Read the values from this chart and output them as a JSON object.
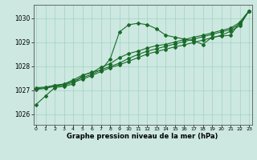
{
  "background_color": "#cce8e0",
  "grid_color": "#99ccbb",
  "line_color": "#1a6b2a",
  "xlabel": "Graphe pression niveau de la mer (hPa)",
  "xlim": [
    -0.3,
    23.3
  ],
  "ylim": [
    1025.55,
    1030.55
  ],
  "yticks": [
    1026,
    1027,
    1028,
    1029,
    1030
  ],
  "xticks": [
    0,
    1,
    2,
    3,
    4,
    5,
    6,
    7,
    8,
    9,
    10,
    11,
    12,
    13,
    14,
    15,
    16,
    17,
    18,
    19,
    20,
    21,
    22,
    23
  ],
  "series": [
    [
      1026.4,
      1026.75,
      1027.1,
      1027.15,
      1027.25,
      1027.6,
      1027.75,
      1027.82,
      1028.3,
      1029.42,
      1029.72,
      1029.78,
      1029.72,
      1029.55,
      1029.28,
      1029.2,
      1029.12,
      1029.05,
      1028.9,
      1029.2,
      1029.25,
      1029.28,
      1029.82,
      1030.3
    ],
    [
      1027.1,
      1027.12,
      1027.2,
      1027.25,
      1027.42,
      1027.62,
      1027.72,
      1027.95,
      1028.1,
      1028.35,
      1028.52,
      1028.62,
      1028.75,
      1028.85,
      1028.9,
      1029.0,
      1029.1,
      1029.2,
      1029.28,
      1029.38,
      1029.48,
      1029.58,
      1029.82,
      1030.3
    ],
    [
      1027.05,
      1027.1,
      1027.18,
      1027.22,
      1027.38,
      1027.52,
      1027.65,
      1027.85,
      1027.98,
      1028.12,
      1028.32,
      1028.48,
      1028.62,
      1028.72,
      1028.82,
      1028.92,
      1029.02,
      1029.12,
      1029.22,
      1029.32,
      1029.42,
      1029.52,
      1029.75,
      1030.3
    ],
    [
      1027.02,
      1027.07,
      1027.15,
      1027.2,
      1027.32,
      1027.45,
      1027.6,
      1027.77,
      1027.93,
      1028.05,
      1028.2,
      1028.35,
      1028.5,
      1028.6,
      1028.7,
      1028.8,
      1028.88,
      1028.98,
      1029.08,
      1029.18,
      1029.28,
      1029.45,
      1029.68,
      1030.3
    ]
  ],
  "figsize": [
    3.2,
    2.0
  ],
  "dpi": 100
}
